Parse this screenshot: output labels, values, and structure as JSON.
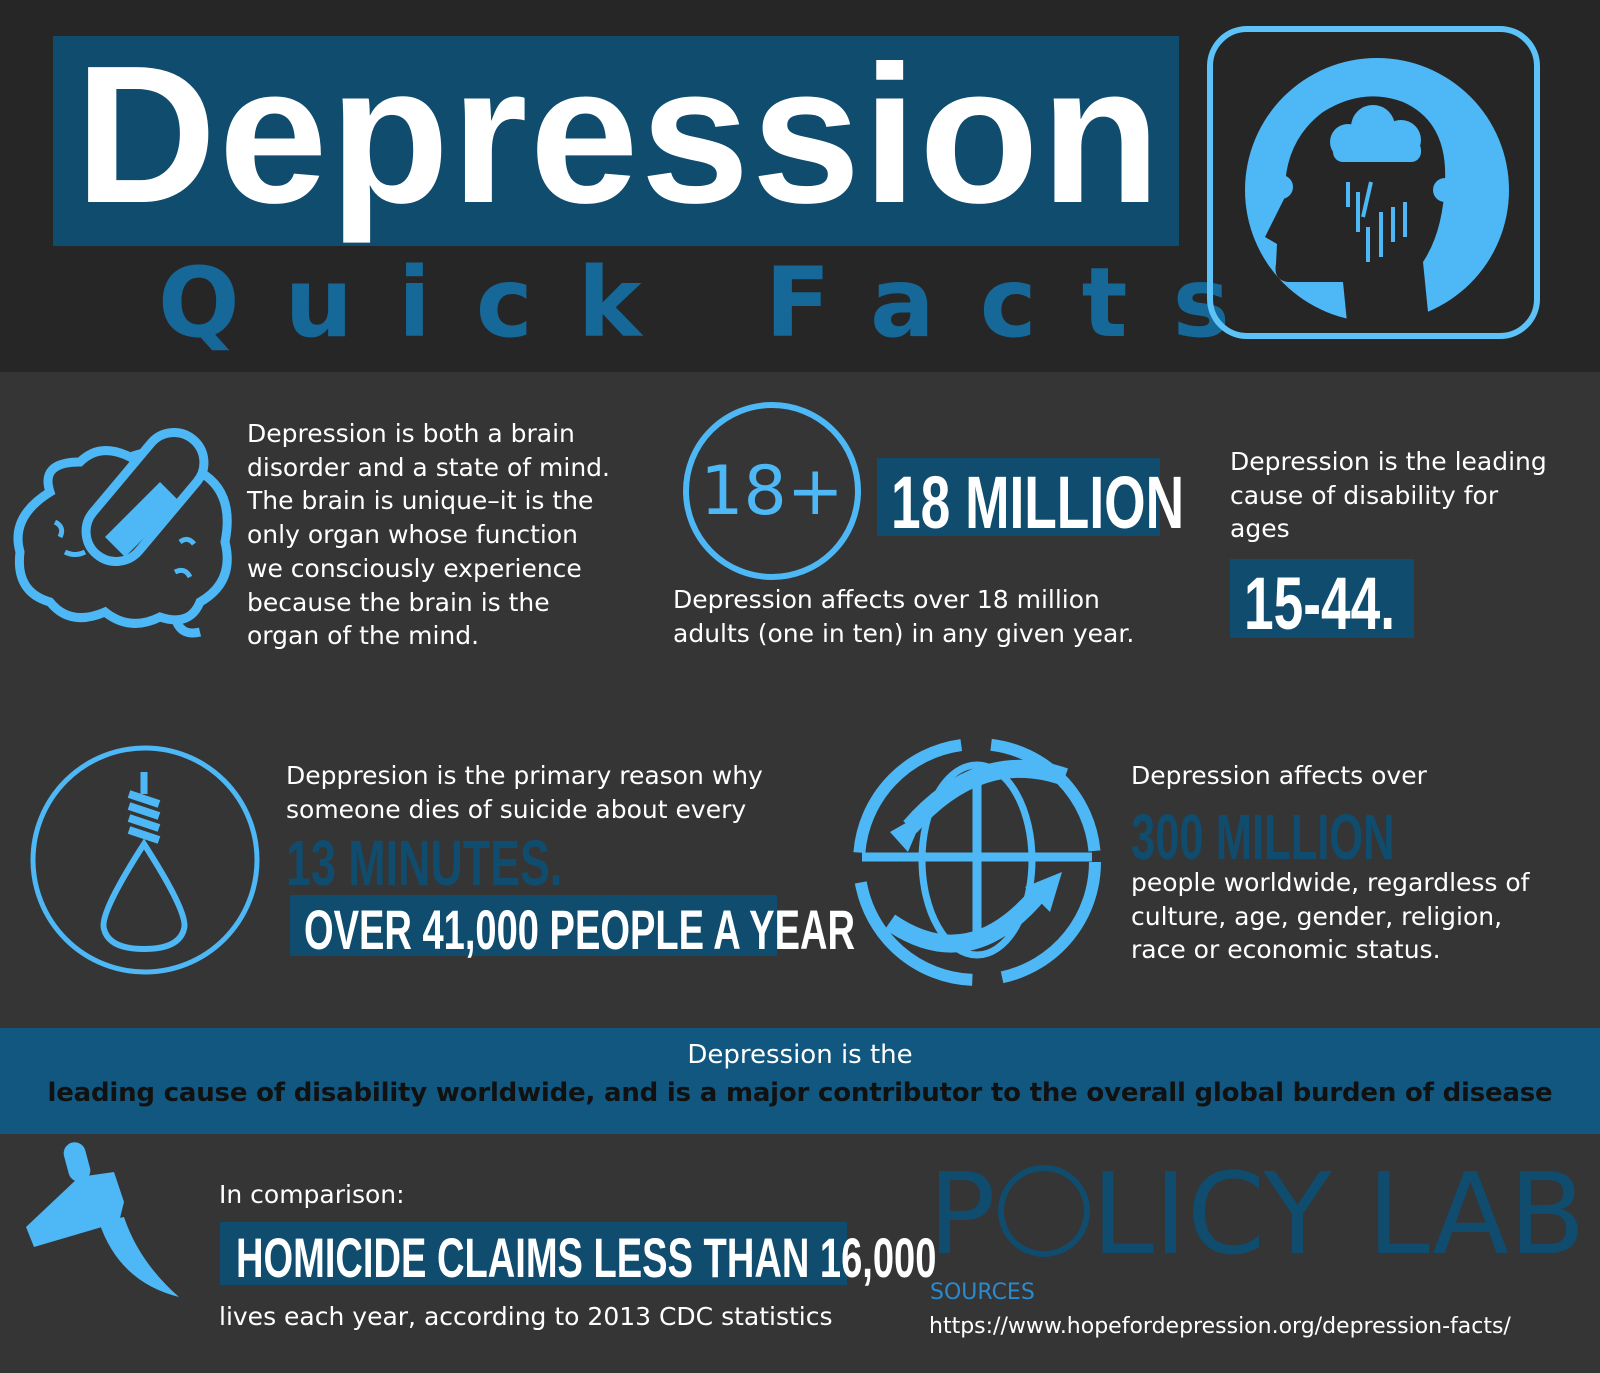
{
  "header": {
    "title": "Depression",
    "subtitle": "Quick Facts",
    "icon": "head-with-storm-cloud-icon"
  },
  "facts": {
    "brain": {
      "icon": "brain-with-pill-icon",
      "lines": [
        "Depression is both a brain",
        "disorder and a state of mind.",
        "The brain is unique–it is the",
        "only organ whose function",
        "we consciously experience",
        "because the brain is the",
        "organ of the mind."
      ]
    },
    "adults": {
      "circle_label": "18+",
      "highlight": "18 MILLION",
      "lines": [
        "Depression affects over 18 million",
        "adults (one in ten) in any given year."
      ]
    },
    "ages": {
      "lines": [
        "Depression is the leading",
        "cause of disability for",
        "ages"
      ],
      "highlight": "15-44."
    },
    "suicide": {
      "icon": "noose-icon",
      "lines": [
        "Deppresion is the primary reason why",
        "someone dies of suicide about every"
      ],
      "emphasis": "13 MINUTES.",
      "highlight": "OVER 41,000 PEOPLE A YEAR"
    },
    "worldwide": {
      "icon": "globe-arrows-icon",
      "intro": "Depression affects over",
      "emphasis": "300 MILLION",
      "lines": [
        "people worldwide, regardless of",
        "culture, age, gender, religion,",
        "race or economic status."
      ]
    }
  },
  "banner": {
    "line1": "Depression is the",
    "line2": "leading cause of disability worldwide, and is a major contributor to the overall global burden of disease"
  },
  "comparison": {
    "icon": "knife-icon",
    "intro": "In comparison:",
    "highlight": "HOMICIDE CLAIMS LESS THAN 16,000",
    "footer": "lives each year, according to 2013 CDC statistics"
  },
  "logo": {
    "text_left": "P",
    "text_right": "LICY LAB"
  },
  "sources": {
    "label": "SOURCES",
    "url": "https://www.hopefordepression.org/depression-facts/"
  },
  "colors": {
    "accent": "#4db8f5",
    "navy": "#0f4c6e",
    "band": "#11577f",
    "header_bg": "#262626",
    "body_bg": "#353535"
  }
}
